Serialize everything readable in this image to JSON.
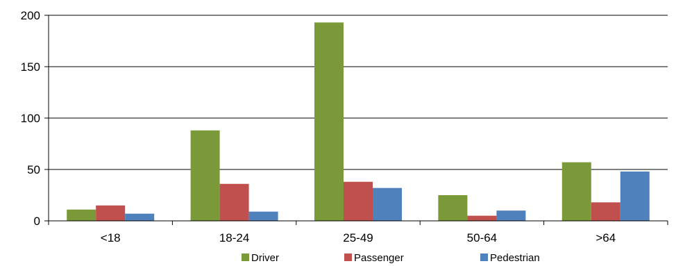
{
  "chart_data": {
    "type": "bar",
    "categories": [
      "<18",
      "18-24",
      "25-49",
      "50-64",
      ">64"
    ],
    "series": [
      {
        "name": "Driver",
        "color": "#7a9a3a",
        "values": [
          11,
          88,
          193,
          25,
          57
        ]
      },
      {
        "name": "Passenger",
        "color": "#c0504d",
        "values": [
          15,
          36,
          38,
          5,
          18
        ]
      },
      {
        "name": "Pedestrian",
        "color": "#4f81bd",
        "values": [
          7,
          9,
          32,
          10,
          48
        ]
      }
    ],
    "title": "",
    "xlabel": "",
    "ylabel": "",
    "ylim": [
      0,
      200
    ],
    "yticks": [
      0,
      50,
      100,
      150,
      200
    ],
    "grid": "horizontal",
    "legend": "bottom"
  }
}
